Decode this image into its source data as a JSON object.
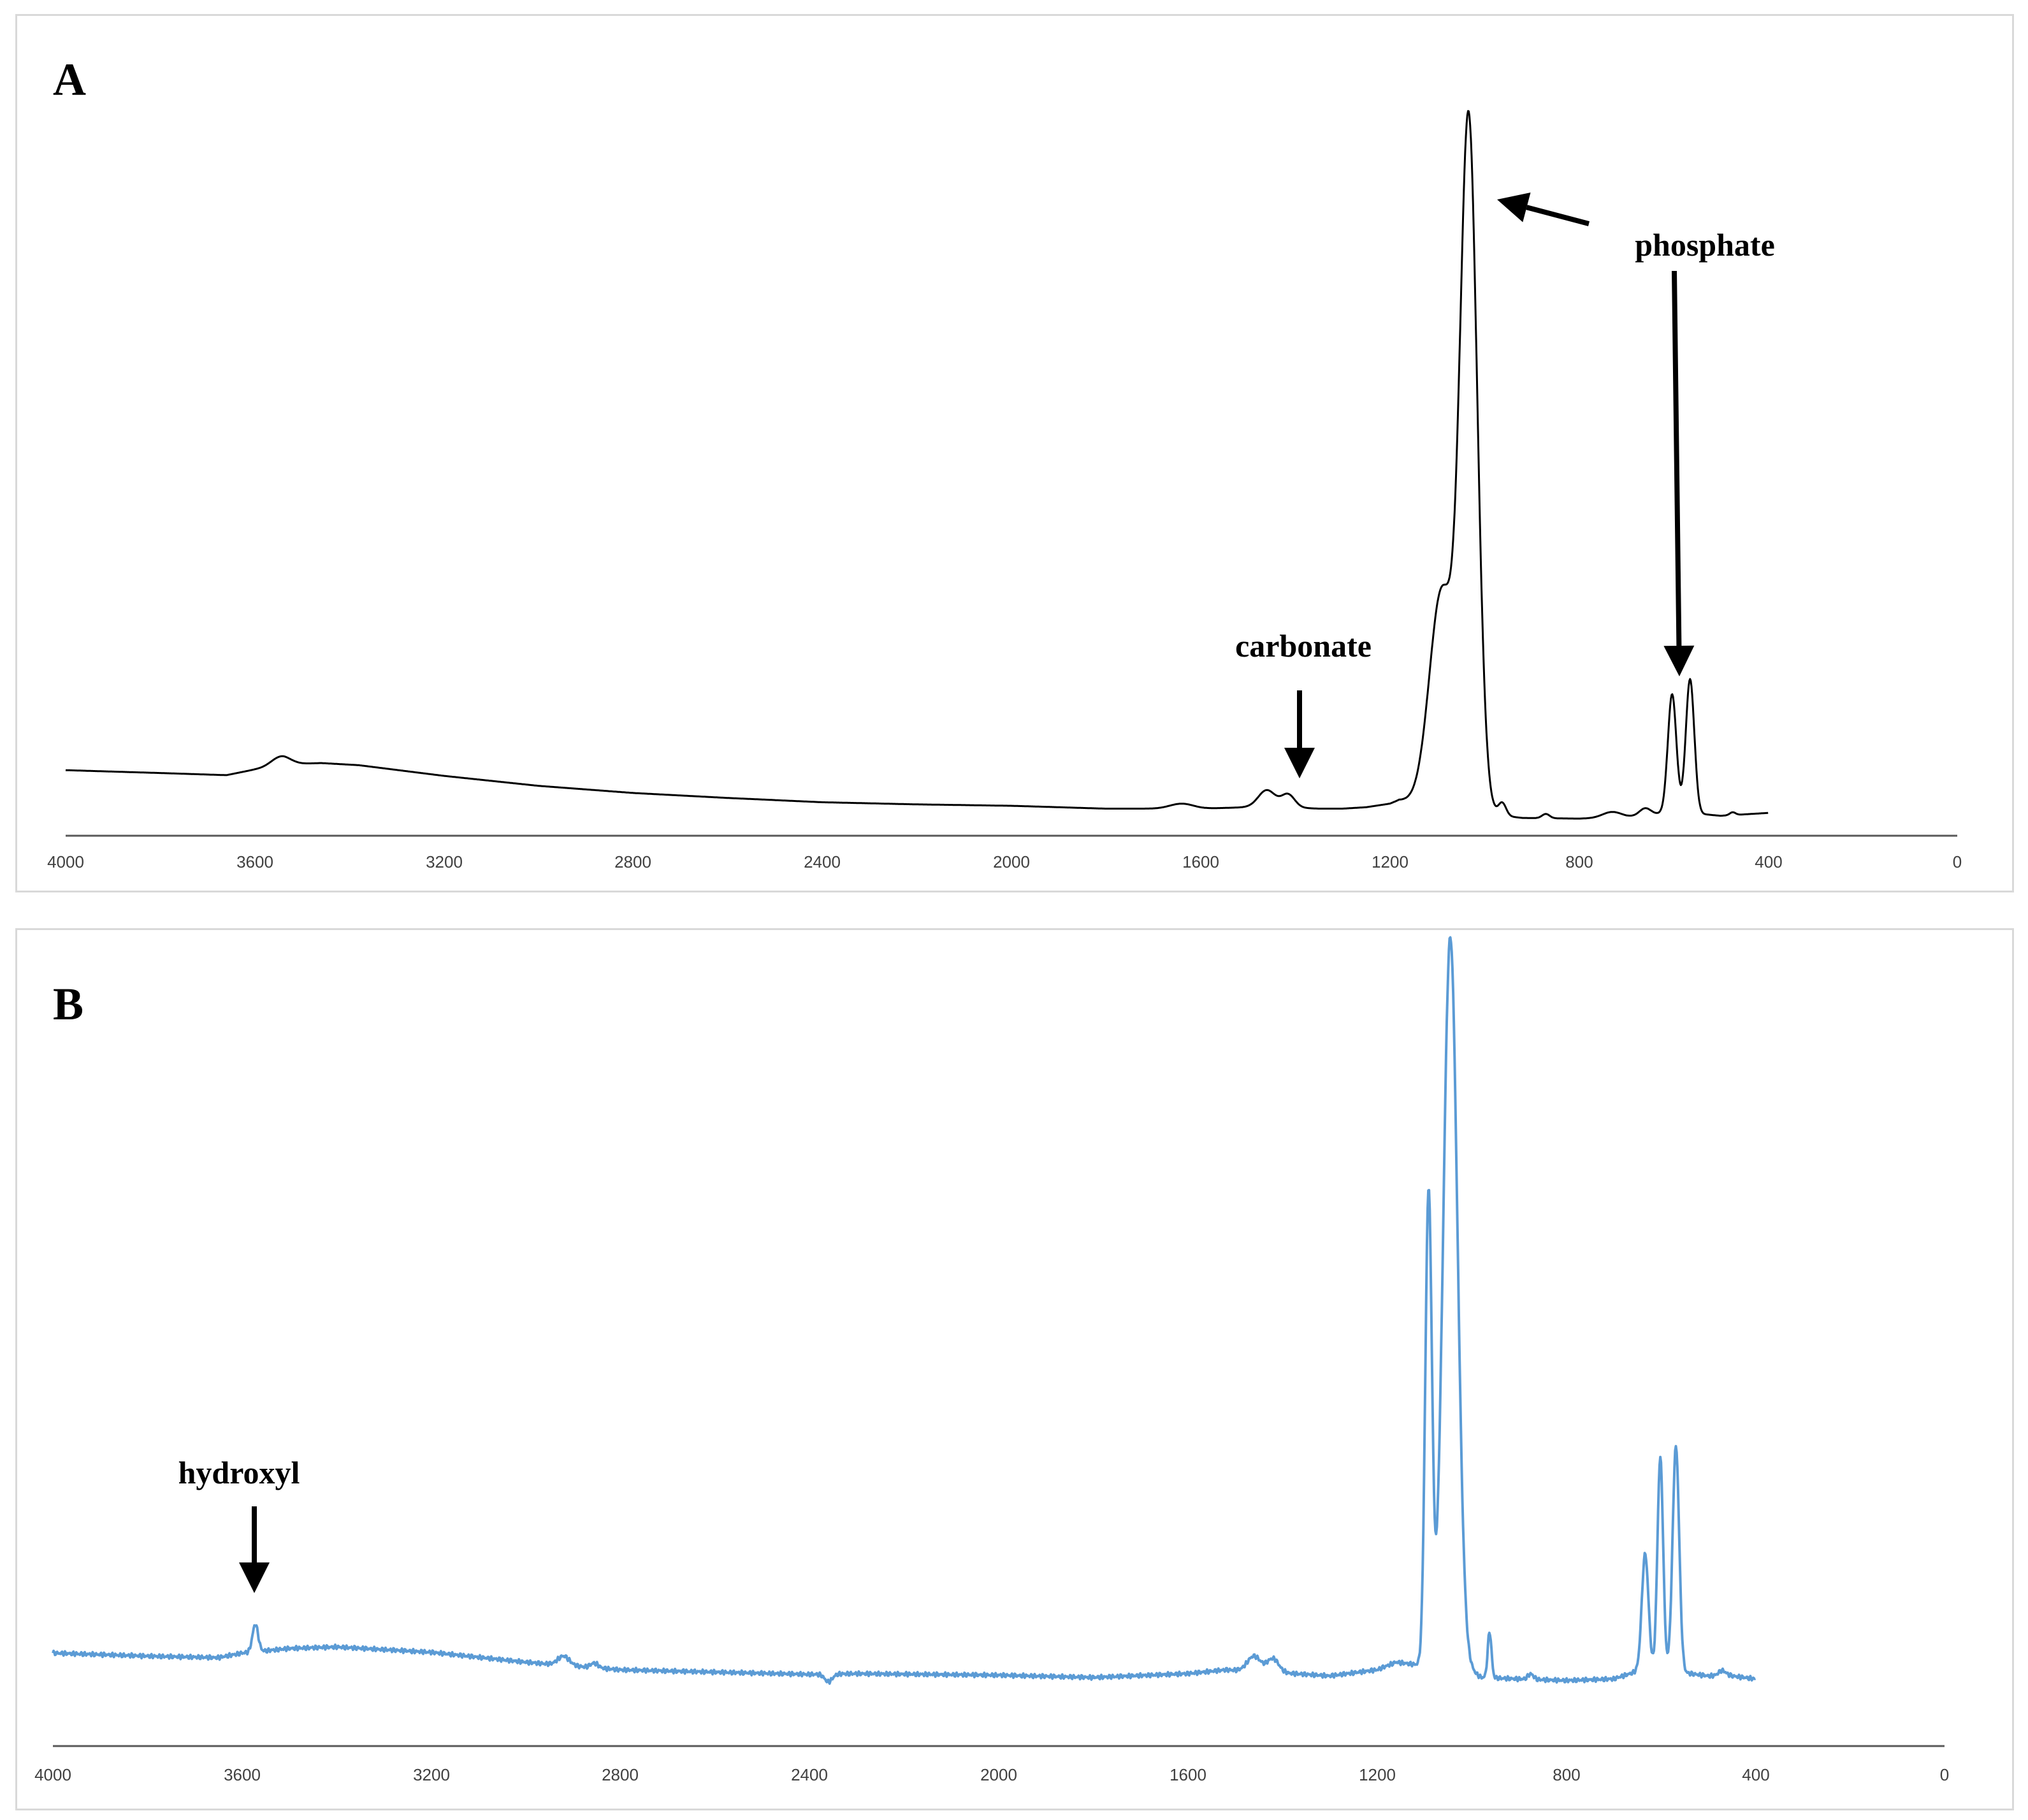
{
  "chart_data": [
    {
      "type": "line",
      "panel_label": "A",
      "title": "",
      "xlabel": "",
      "ylabel": "",
      "xlim": [
        4000,
        0
      ],
      "x_reversed": true,
      "ylim": [
        0,
        1
      ],
      "grid": false,
      "x_ticks": [
        "4000",
        "3600",
        "3200",
        "2800",
        "2400",
        "2000",
        "1600",
        "1200",
        "800",
        "400",
        "0"
      ],
      "series": [
        {
          "color": "#000000",
          "baseline": [
            [
              4000,
              0.092
            ],
            [
              3800,
              0.088
            ],
            [
              3660,
              0.085
            ],
            [
              3600,
              0.093
            ],
            [
              3540,
              0.1
            ],
            [
              3460,
              0.102
            ],
            [
              3380,
              0.099
            ],
            [
              3200,
              0.084
            ],
            [
              3000,
              0.07
            ],
            [
              2800,
              0.06
            ],
            [
              2600,
              0.053
            ],
            [
              2400,
              0.047
            ],
            [
              2200,
              0.044
            ],
            [
              2000,
              0.042
            ],
            [
              1800,
              0.038
            ],
            [
              1700,
              0.038
            ],
            [
              1600,
              0.038
            ],
            [
              1500,
              0.04
            ],
            [
              1420,
              0.04
            ],
            [
              1350,
              0.038
            ],
            [
              1300,
              0.038
            ],
            [
              1250,
              0.04
            ],
            [
              1200,
              0.045
            ],
            [
              1180,
              0.05
            ],
            [
              1000,
              0.037
            ],
            [
              960,
              0.028
            ],
            [
              920,
              0.025
            ],
            [
              800,
              0.024
            ],
            [
              700,
              0.026
            ],
            [
              640,
              0.03
            ],
            [
              600,
              0.034
            ],
            [
              500,
              0.028
            ],
            [
              450,
              0.03
            ],
            [
              400,
              0.032
            ]
          ],
          "peaks": [
            {
              "x": 3545,
              "h": 0.012,
              "w": 20
            },
            {
              "x": 1640,
              "h": 0.007,
              "w": 25
            },
            {
              "x": 1460,
              "h": 0.024,
              "w": 18
            },
            {
              "x": 1415,
              "h": 0.018,
              "w": 14
            },
            {
              "x": 1090,
              "h": 0.3,
              "w": 26
            },
            {
              "x": 1033,
              "h": 0.95,
              "w": 18
            },
            {
              "x": 962,
              "h": 0.018,
              "w": 8
            },
            {
              "x": 870,
              "h": 0.006,
              "w": 8
            },
            {
              "x": 730,
              "h": 0.008,
              "w": 20
            },
            {
              "x": 660,
              "h": 0.01,
              "w": 12
            },
            {
              "x": 603,
              "h": 0.165,
              "w": 9
            },
            {
              "x": 565,
              "h": 0.188,
              "w": 9
            },
            {
              "x": 475,
              "h": 0.004,
              "w": 6
            }
          ]
        }
      ],
      "annotations": [
        {
          "text": "carbonate",
          "x": 1425
        },
        {
          "text": "phosphate",
          "x": 1020,
          "target_x": 1033
        },
        {
          "text": "phosphate",
          "x": 600
        }
      ]
    },
    {
      "type": "line",
      "panel_label": "B",
      "title": "",
      "xlabel": "",
      "ylabel": "",
      "xlim": [
        4000,
        0
      ],
      "x_reversed": true,
      "ylim": [
        0,
        1
      ],
      "grid": false,
      "x_ticks": [
        "4000",
        "3600",
        "3200",
        "2800",
        "2400",
        "2000",
        "1600",
        "1200",
        "800",
        "400",
        "0"
      ],
      "series": [
        {
          "color": "#5b9bd5",
          "baseline": [
            [
              4000,
              0.122
            ],
            [
              3800,
              0.118
            ],
            [
              3650,
              0.116
            ],
            [
              3600,
              0.122
            ],
            [
              3500,
              0.128
            ],
            [
              3400,
              0.13
            ],
            [
              3200,
              0.123
            ],
            [
              3000,
              0.11
            ],
            [
              2800,
              0.1
            ],
            [
              2600,
              0.097
            ],
            [
              2400,
              0.094
            ],
            [
              2300,
              0.095
            ],
            [
              2000,
              0.093
            ],
            [
              1800,
              0.09
            ],
            [
              1600,
              0.095
            ],
            [
              1520,
              0.1
            ],
            [
              1400,
              0.096
            ],
            [
              1300,
              0.092
            ],
            [
              1200,
              0.1
            ],
            [
              1160,
              0.11
            ],
            [
              1000,
              0.098
            ],
            [
              980,
              0.09
            ],
            [
              900,
              0.088
            ],
            [
              800,
              0.086
            ],
            [
              700,
              0.088
            ],
            [
              640,
              0.1
            ],
            [
              600,
              0.1
            ],
            [
              500,
              0.092
            ],
            [
              450,
              0.092
            ],
            [
              400,
              0.088
            ]
          ],
          "peaks": [
            {
              "x": 3572,
              "h": 0.036,
              "w": 6
            },
            {
              "x": 2920,
              "h": 0.012,
              "w": 12
            },
            {
              "x": 2855,
              "h": 0.006,
              "w": 8
            },
            {
              "x": 2360,
              "h": -0.01,
              "w": 8
            },
            {
              "x": 1460,
              "h": 0.02,
              "w": 14
            },
            {
              "x": 1420,
              "h": 0.018,
              "w": 12
            },
            {
              "x": 1091,
              "h": 0.62,
              "w": 7
            },
            {
              "x": 1045,
              "h": 0.96,
              "w": 15
            },
            {
              "x": 962,
              "h": 0.06,
              "w": 4
            },
            {
              "x": 875,
              "h": 0.007,
              "w": 6
            },
            {
              "x": 633,
              "h": 0.152,
              "w": 7
            },
            {
              "x": 601,
              "h": 0.278,
              "w": 6
            },
            {
              "x": 568,
              "h": 0.295,
              "w": 7
            },
            {
              "x": 470,
              "h": 0.007,
              "w": 8
            }
          ],
          "noise": 0.003
        }
      ],
      "annotations": [
        {
          "text": "hydroxyl",
          "x": 3572
        }
      ]
    }
  ]
}
